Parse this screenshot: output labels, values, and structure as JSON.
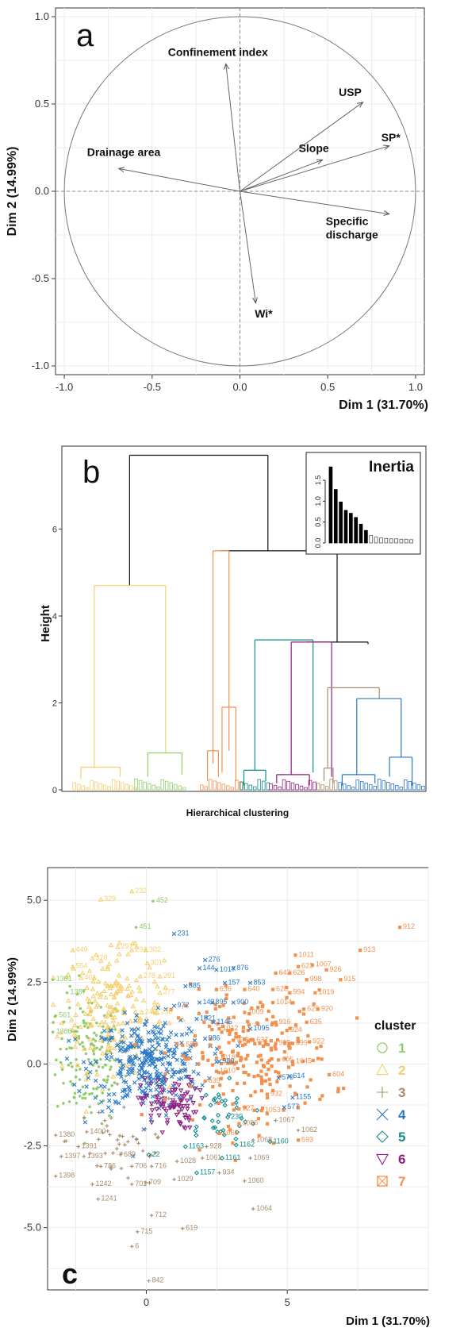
{
  "chart_data": [
    {
      "panel": "a",
      "type": "pca-correlation-circle",
      "panel_letter": "a",
      "xlabel": "Dim 1 (31.70%)",
      "ylabel": "Dim 2 (14.99%)",
      "xlim": [
        -1.05,
        1.05
      ],
      "ylim": [
        -1.05,
        1.05
      ],
      "x_ticks": [
        -1.0,
        -0.5,
        0.0,
        0.5,
        1.0
      ],
      "y_ticks": [
        -1.0,
        -0.5,
        0.0,
        0.5,
        1.0
      ],
      "x_tick_labels": [
        "-1.0",
        "-0.5",
        "0.0",
        "0.5",
        "1.0"
      ],
      "y_tick_labels": [
        "-1.0",
        "-0.5",
        "0.0",
        "0.5",
        "1.0"
      ],
      "grid": true,
      "vectors": [
        {
          "label": "Confinement index",
          "x": -0.08,
          "y": 0.73
        },
        {
          "label": "USP",
          "x": 0.7,
          "y": 0.51
        },
        {
          "label": "SP*",
          "x": 0.85,
          "y": 0.26
        },
        {
          "label": "Slope",
          "x": 0.47,
          "y": 0.18
        },
        {
          "label": "Drainage area",
          "x": -0.69,
          "y": 0.13
        },
        {
          "label": "Specific\ndischarge",
          "x": 0.85,
          "y": -0.13
        },
        {
          "label": "Wi*",
          "x": 0.09,
          "y": -0.64
        }
      ]
    },
    {
      "panel": "b",
      "type": "dendrogram",
      "panel_letter": "b",
      "ylabel": "Height",
      "xlabel": "Hierarchical clustering",
      "ylim": [
        0,
        7.8
      ],
      "y_ticks": [
        0,
        2,
        4,
        6
      ],
      "y_tick_labels": [
        "0",
        "2",
        "4",
        "6"
      ],
      "cluster_colors": [
        "#8fcd6b",
        "#f5cf6e",
        "#a88b6c",
        "#2878c8",
        "#138c8c",
        "#8e1f82",
        "#f2914e"
      ],
      "top_merges": [
        {
          "left_x": 0.186,
          "right_x": 0.566,
          "height": 7.7
        },
        {
          "left_x": 0.437,
          "right_x": 0.756,
          "height": 5.5
        },
        {
          "left_x": 0.671,
          "right_x": 0.841,
          "height": 3.4
        },
        {
          "left_x": 0.584,
          "right_x": 0.71,
          "height": 3.45
        },
        {
          "left_x": 0.782,
          "right_x": 0.9,
          "height": 2.35
        },
        {
          "left_x": 0.089,
          "right_x": 0.285,
          "height": 4.7
        }
      ],
      "inset": {
        "title": "Inertia",
        "ylim": [
          0,
          1.9
        ],
        "y_ticks": [
          0.0,
          0.5,
          1.0,
          1.5
        ],
        "y_tick_labels": [
          "0.0",
          "0.5",
          "1.0",
          "1.5"
        ],
        "values": [
          1.82,
          1.28,
          0.98,
          0.78,
          0.71,
          0.61,
          0.45,
          0.3,
          0.18,
          0.14,
          0.12,
          0.11,
          0.1,
          0.1,
          0.09,
          0.09,
          0.08
        ],
        "highlighted_count": 8
      }
    },
    {
      "panel": "c",
      "type": "scatter",
      "panel_letter": "c",
      "xlabel": "Dim 1 (31.70%)",
      "ylabel": "Dim 2 (14.99%)",
      "xlim": [
        -3.5,
        10.0
      ],
      "ylim": [
        -6.9,
        6.0
      ],
      "x_ticks": [
        0,
        5
      ],
      "x_tick_labels": [
        "0",
        "5"
      ],
      "y_ticks": [
        5.0,
        2.5,
        0.0,
        -2.5,
        -5.0
      ],
      "y_tick_labels": [
        "5.0",
        "2.5",
        "0.0",
        "-2.5",
        "-5.0"
      ],
      "grid": true,
      "legend": {
        "title": "cluster",
        "position": "right"
      },
      "clusters": [
        {
          "name": "1",
          "color": "#8fcd6b",
          "marker": "circle",
          "center": [
            -2.0,
            0.2
          ],
          "spread": [
            0.6,
            1.0
          ],
          "count": 150
        },
        {
          "name": "2",
          "color": "#f5cf6e",
          "marker": "triangle",
          "center": [
            -1.2,
            1.6
          ],
          "spread": [
            0.9,
            0.9
          ],
          "count": 190
        },
        {
          "name": "3",
          "color": "#a88b6c",
          "marker": "plus",
          "center": [
            -0.8,
            -2.3
          ],
          "spread": [
            1.0,
            0.8
          ],
          "count": 45
        },
        {
          "name": "4",
          "color": "#2878c8",
          "marker": "x",
          "center": [
            0.1,
            0.0
          ],
          "spread": [
            1.0,
            0.7
          ],
          "count": 340
        },
        {
          "name": "5",
          "color": "#138c8c",
          "marker": "diamond",
          "center": [
            2.5,
            -1.6
          ],
          "spread": [
            0.7,
            0.5
          ],
          "count": 35
        },
        {
          "name": "6",
          "color": "#8e1f82",
          "marker": "down-triangle",
          "center": [
            0.8,
            -1.2
          ],
          "spread": [
            0.5,
            0.4
          ],
          "count": 90
        },
        {
          "name": "7",
          "color": "#f2914e",
          "marker": "square",
          "center": [
            3.8,
            0.2
          ],
          "spread": [
            1.4,
            1.0
          ],
          "count": 220
        }
      ],
      "point_labels": [
        {
          "text": "232",
          "x": -0.4,
          "y": 5.3,
          "cluster": "2"
        },
        {
          "text": "329",
          "x": -1.5,
          "y": 5.05,
          "cluster": "2"
        },
        {
          "text": "452",
          "x": 0.35,
          "y": 5.0,
          "cluster": "1"
        },
        {
          "text": "451",
          "x": -0.25,
          "y": 4.2,
          "cluster": "1"
        },
        {
          "text": "231",
          "x": 1.1,
          "y": 4.0,
          "cluster": "4"
        },
        {
          "text": "1381",
          "x": -3.2,
          "y": 2.6,
          "cluster": "1"
        },
        {
          "text": "449",
          "x": -2.5,
          "y": 3.5,
          "cluster": "2"
        },
        {
          "text": "328",
          "x": -1.8,
          "y": 3.25,
          "cluster": "2"
        },
        {
          "text": "554",
          "x": -2.5,
          "y": 3.0,
          "cluster": "2"
        },
        {
          "text": "1387",
          "x": -2.7,
          "y": 2.2,
          "cluster": "1"
        },
        {
          "text": "561",
          "x": -3.1,
          "y": 1.5,
          "cluster": "1"
        },
        {
          "text": "1386",
          "x": -3.2,
          "y": 1.0,
          "cluster": "1"
        },
        {
          "text": "297",
          "x": -0.9,
          "y": 3.6,
          "cluster": "2"
        },
        {
          "text": "294",
          "x": -0.4,
          "y": 3.5,
          "cluster": "2"
        },
        {
          "text": "302",
          "x": 0.1,
          "y": 3.5,
          "cluster": "2"
        },
        {
          "text": "301",
          "x": 0.15,
          "y": 3.1,
          "cluster": "2"
        },
        {
          "text": "401",
          "x": -2.2,
          "y": 2.65,
          "cluster": "2"
        },
        {
          "text": "278",
          "x": -0.1,
          "y": 2.7,
          "cluster": "2"
        },
        {
          "text": "291",
          "x": 0.6,
          "y": 2.7,
          "cluster": "2"
        },
        {
          "text": "277",
          "x": 0.6,
          "y": 2.2,
          "cluster": "2"
        },
        {
          "text": "240",
          "x": -0.05,
          "y": 1.6,
          "cluster": "2"
        },
        {
          "text": "236",
          "x": 0.5,
          "y": 1.6,
          "cluster": "2"
        },
        {
          "text": "276",
          "x": 2.2,
          "y": 3.2,
          "cluster": "4"
        },
        {
          "text": "876",
          "x": 3.2,
          "y": 2.95,
          "cluster": "4"
        },
        {
          "text": "144",
          "x": 2.0,
          "y": 2.95,
          "cluster": "4"
        },
        {
          "text": "1017",
          "x": 2.6,
          "y": 2.9,
          "cluster": "4"
        },
        {
          "text": "885",
          "x": 1.5,
          "y": 2.4,
          "cluster": "4"
        },
        {
          "text": "157",
          "x": 2.9,
          "y": 2.5,
          "cluster": "4"
        },
        {
          "text": "853",
          "x": 3.8,
          "y": 2.5,
          "cluster": "4"
        },
        {
          "text": "972",
          "x": 1.1,
          "y": 1.8,
          "cluster": "4"
        },
        {
          "text": "143",
          "x": 2.0,
          "y": 1.9,
          "cluster": "4"
        },
        {
          "text": "895",
          "x": 2.45,
          "y": 1.9,
          "cluster": "4"
        },
        {
          "text": "900",
          "x": 3.2,
          "y": 1.9,
          "cluster": "4"
        },
        {
          "text": "1021",
          "x": 1.9,
          "y": 1.4,
          "cluster": "4"
        },
        {
          "text": "1145",
          "x": 2.5,
          "y": 1.3,
          "cluster": "4"
        },
        {
          "text": "1095",
          "x": 3.8,
          "y": 1.1,
          "cluster": "4"
        },
        {
          "text": "986",
          "x": 2.2,
          "y": 0.8,
          "cluster": "4"
        },
        {
          "text": "989",
          "x": 2.7,
          "y": 0.1,
          "cluster": "4"
        },
        {
          "text": "576",
          "x": 4.8,
          "y": -0.4,
          "cluster": "4"
        },
        {
          "text": "614",
          "x": 5.2,
          "y": -0.35,
          "cluster": "4"
        },
        {
          "text": "1155",
          "x": 5.3,
          "y": -1.0,
          "cluster": "4"
        },
        {
          "text": "577",
          "x": 5.0,
          "y": -1.3,
          "cluster": "4"
        },
        {
          "text": "623",
          "x": 5.5,
          "y": 3.0,
          "cluster": "7"
        },
        {
          "text": "1011",
          "x": 5.4,
          "y": 3.35,
          "cluster": "7"
        },
        {
          "text": "643",
          "x": 4.7,
          "y": 2.8,
          "cluster": "7"
        },
        {
          "text": "626",
          "x": 5.2,
          "y": 2.8,
          "cluster": "7"
        },
        {
          "text": "1007",
          "x": 6.0,
          "y": 3.05,
          "cluster": "7"
        },
        {
          "text": "926",
          "x": 6.5,
          "y": 2.9,
          "cluster": "7"
        },
        {
          "text": "915",
          "x": 7.0,
          "y": 2.6,
          "cluster": "7"
        },
        {
          "text": "913",
          "x": 7.7,
          "y": 3.5,
          "cluster": "7"
        },
        {
          "text": "912",
          "x": 9.1,
          "y": 4.2,
          "cluster": "7"
        },
        {
          "text": "640",
          "x": 3.6,
          "y": 2.3,
          "cluster": "7"
        },
        {
          "text": "628",
          "x": 4.6,
          "y": 2.3,
          "cluster": "7"
        },
        {
          "text": "994",
          "x": 5.2,
          "y": 2.2,
          "cluster": "7"
        },
        {
          "text": "998",
          "x": 5.8,
          "y": 2.6,
          "cluster": "7"
        },
        {
          "text": "1019",
          "x": 6.1,
          "y": 2.2,
          "cluster": "7"
        },
        {
          "text": "636",
          "x": 2.6,
          "y": 2.3,
          "cluster": "7"
        },
        {
          "text": "1014",
          "x": 4.6,
          "y": 1.9,
          "cluster": "7"
        },
        {
          "text": "629",
          "x": 5.7,
          "y": 1.7,
          "cluster": "7"
        },
        {
          "text": "920",
          "x": 6.2,
          "y": 1.7,
          "cluster": "7"
        },
        {
          "text": "1009",
          "x": 3.6,
          "y": 1.6,
          "cluster": "7"
        },
        {
          "text": "916",
          "x": 4.7,
          "y": 1.3,
          "cluster": "7"
        },
        {
          "text": "635",
          "x": 5.8,
          "y": 1.3,
          "cluster": "7"
        },
        {
          "text": "924",
          "x": 5.1,
          "y": 1.05,
          "cluster": "7"
        },
        {
          "text": "1012",
          "x": 2.7,
          "y": 1.1,
          "cluster": "7"
        },
        {
          "text": "938",
          "x": 3.2,
          "y": 0.75,
          "cluster": "7"
        },
        {
          "text": "637",
          "x": 3.9,
          "y": 0.75,
          "cluster": "7"
        },
        {
          "text": "925",
          "x": 4.7,
          "y": 0.65,
          "cluster": "7"
        },
        {
          "text": "599",
          "x": 5.3,
          "y": 0.65,
          "cluster": "7"
        },
        {
          "text": "922",
          "x": 5.9,
          "y": 0.7,
          "cluster": "7"
        },
        {
          "text": "588",
          "x": 1.4,
          "y": 0.6,
          "cluster": "7"
        },
        {
          "text": "1010",
          "x": 2.6,
          "y": -0.2,
          "cluster": "7"
        },
        {
          "text": "1018",
          "x": 2.6,
          "y": 0.2,
          "cluster": "7"
        },
        {
          "text": "605",
          "x": 4.8,
          "y": 0.15,
          "cluster": "7"
        },
        {
          "text": "1045",
          "x": 5.3,
          "y": 0.1,
          "cluster": "7"
        },
        {
          "text": "604",
          "x": 6.6,
          "y": -0.3,
          "cluster": "7"
        },
        {
          "text": "639",
          "x": 2.2,
          "y": -0.5,
          "cluster": "7"
        },
        {
          "text": "932",
          "x": 4.4,
          "y": -0.9,
          "cluster": "7"
        },
        {
          "text": "927",
          "x": 3.4,
          "y": -1.35,
          "cluster": "7"
        },
        {
          "text": "1053",
          "x": 4.2,
          "y": -1.4,
          "cluster": "7"
        },
        {
          "text": "1067",
          "x": 4.7,
          "y": -1.7,
          "cluster": "3"
        },
        {
          "text": "1062",
          "x": 5.5,
          "y": -2.0,
          "cluster": "3"
        },
        {
          "text": "593",
          "x": 5.5,
          "y": -2.3,
          "cluster": "7"
        },
        {
          "text": "230",
          "x": 3.0,
          "y": -1.6,
          "cluster": "5"
        },
        {
          "text": "1055",
          "x": 3.4,
          "y": -1.8,
          "cluster": "7"
        },
        {
          "text": "1066",
          "x": 2.7,
          "y": -2.1,
          "cluster": "7"
        },
        {
          "text": "1068",
          "x": 3.9,
          "y": -2.3,
          "cluster": "3"
        },
        {
          "text": "1160",
          "x": 4.5,
          "y": -2.35,
          "cluster": "5"
        },
        {
          "text": "1163",
          "x": 1.5,
          "y": -2.5,
          "cluster": "5"
        },
        {
          "text": "928",
          "x": 2.25,
          "y": -2.5,
          "cluster": "3"
        },
        {
          "text": "1162",
          "x": 3.3,
          "y": -2.45,
          "cluster": "5"
        },
        {
          "text": "1061",
          "x": 2.1,
          "y": -2.85,
          "cluster": "3"
        },
        {
          "text": "1161",
          "x": 2.8,
          "y": -2.85,
          "cluster": "5"
        },
        {
          "text": "1069",
          "x": 3.8,
          "y": -2.85,
          "cluster": "3"
        },
        {
          "text": "1157",
          "x": 1.9,
          "y": -3.3,
          "cluster": "5"
        },
        {
          "text": "934",
          "x": 2.7,
          "y": -3.3,
          "cluster": "3"
        },
        {
          "text": "1060",
          "x": 3.6,
          "y": -3.55,
          "cluster": "3"
        },
        {
          "text": "1064",
          "x": 3.9,
          "y": -4.4,
          "cluster": "3"
        },
        {
          "text": "1380",
          "x": -3.1,
          "y": -2.15,
          "cluster": "3"
        },
        {
          "text": "1400",
          "x": -2.0,
          "y": -2.05,
          "cluster": "3"
        },
        {
          "text": "1391",
          "x": -2.3,
          "y": -2.5,
          "cluster": "3"
        },
        {
          "text": "1397",
          "x": -2.9,
          "y": -2.8,
          "cluster": "3"
        },
        {
          "text": "1393",
          "x": -2.1,
          "y": -2.8,
          "cluster": "3"
        },
        {
          "text": "689",
          "x": -0.8,
          "y": -2.75,
          "cluster": "3"
        },
        {
          "text": "22",
          "x": 0.2,
          "y": -2.75,
          "cluster": "5"
        },
        {
          "text": "786",
          "x": -1.5,
          "y": -3.1,
          "cluster": "3"
        },
        {
          "text": "706",
          "x": -0.4,
          "y": -3.1,
          "cluster": "3"
        },
        {
          "text": "716",
          "x": 0.3,
          "y": -3.1,
          "cluster": "3"
        },
        {
          "text": "1028",
          "x": 1.2,
          "y": -2.95,
          "cluster": "3"
        },
        {
          "text": "1398",
          "x": -3.1,
          "y": -3.4,
          "cluster": "3"
        },
        {
          "text": "1242",
          "x": -1.8,
          "y": -3.65,
          "cluster": "3"
        },
        {
          "text": "701",
          "x": -0.4,
          "y": -3.65,
          "cluster": "3"
        },
        {
          "text": "709",
          "x": 0.1,
          "y": -3.6,
          "cluster": "3"
        },
        {
          "text": "1029",
          "x": 1.1,
          "y": -3.5,
          "cluster": "3"
        },
        {
          "text": "1241",
          "x": -1.6,
          "y": -4.1,
          "cluster": "3"
        },
        {
          "text": "712",
          "x": 0.3,
          "y": -4.6,
          "cluster": "3"
        },
        {
          "text": "715",
          "x": -0.2,
          "y": -5.1,
          "cluster": "3"
        },
        {
          "text": "619",
          "x": 1.4,
          "y": -5.0,
          "cluster": "3"
        },
        {
          "text": "6",
          "x": -0.4,
          "y": -5.55,
          "cluster": "3"
        },
        {
          "text": "842",
          "x": 0.2,
          "y": -6.6,
          "cluster": "3"
        }
      ]
    }
  ]
}
